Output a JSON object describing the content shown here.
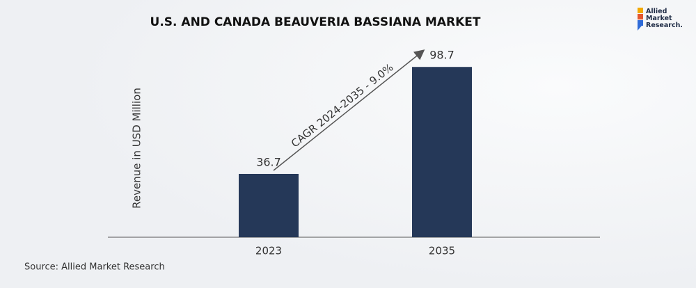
{
  "chart_data": {
    "type": "bar",
    "title": "U.S. AND CANADA BEAUVERIA BASSIANA MARKET",
    "y_label": "Revenue in USD Million",
    "categories": [
      "2023",
      "2035"
    ],
    "values": [
      36.7,
      98.7
    ],
    "color": "#253858",
    "ylim": [
      0,
      100
    ],
    "annotation": "CAGR 2024-2035 - 9.0%",
    "source": "Source: Allied Market Research"
  },
  "logo": {
    "lines": [
      "Allied",
      "Market",
      "Research."
    ]
  }
}
